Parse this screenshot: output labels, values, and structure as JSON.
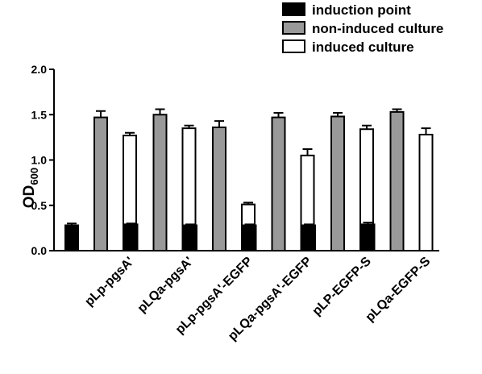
{
  "chart_data": {
    "type": "bar",
    "title": "",
    "xlabel": "",
    "ylabel": "OD",
    "ylabel_subscript": "600",
    "ylim": [
      0,
      2.0
    ],
    "yticks": [
      "0.0",
      "0.5",
      "1.0",
      "1.5",
      "2.0"
    ],
    "ytick_values": [
      0,
      0.5,
      1.0,
      1.5,
      2.0
    ],
    "legend_position": "top-right",
    "categories": [
      "pLp-pgsA'",
      "pLQa-pgsA'",
      "pLp-pgsA'-EGFP",
      "pLQa-pgsA'-EGFP",
      "pLP-EGFP-S",
      "pLQa-EGFP-S"
    ],
    "series": [
      {
        "name": "induction point",
        "color": "#000000",
        "values": [
          0.28,
          0.29,
          0.28,
          0.28,
          0.28,
          0.29
        ],
        "errors": [
          0.02,
          0.01,
          0.01,
          0.01,
          0.01,
          0.02
        ]
      },
      {
        "name": "non-induced culture",
        "color": "#999999",
        "values": [
          1.47,
          1.5,
          1.36,
          1.47,
          1.48,
          1.53
        ],
        "errors": [
          0.07,
          0.06,
          0.07,
          0.05,
          0.04,
          0.03
        ]
      },
      {
        "name": "induced culture",
        "color": "#ffffff",
        "values": [
          1.27,
          1.35,
          0.51,
          1.05,
          1.34,
          1.28
        ],
        "errors": [
          0.03,
          0.03,
          0.02,
          0.07,
          0.04,
          0.07
        ]
      }
    ]
  }
}
